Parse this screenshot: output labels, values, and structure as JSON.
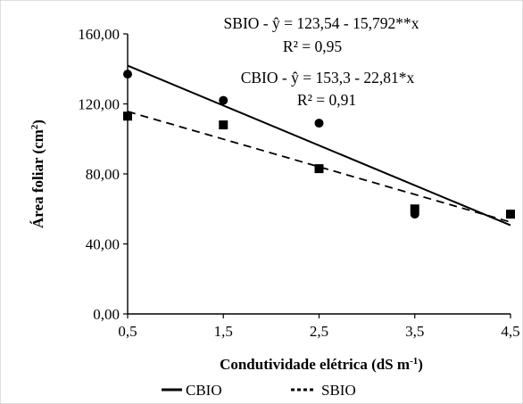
{
  "chart_data": {
    "type": "scatter",
    "xlabel": "Condutividade elétrica (dS m",
    "xlabel_sup": "-1",
    "xlabel_close": ")",
    "ylabel": "Área foliar (cm",
    "ylabel_sup": "2",
    "ylabel_close": ")",
    "x_ticks": [
      "0,5",
      "1,5",
      "2,5",
      "3,5",
      "4,5"
    ],
    "x_tick_values": [
      0.5,
      1.5,
      2.5,
      3.5,
      4.5
    ],
    "y_ticks": [
      "0,00",
      "40,00",
      "80,00",
      "120,00",
      "160,00"
    ],
    "y_tick_values": [
      0,
      40,
      80,
      120,
      160
    ],
    "xlim": [
      0.5,
      4.5
    ],
    "ylim": [
      0,
      160
    ],
    "grid": false,
    "legend_position": "bottom",
    "series": [
      {
        "name": "CBIO",
        "marker": "circle",
        "line_style": "solid",
        "x": [
          0.5,
          1.5,
          2.5,
          3.5,
          4.5
        ],
        "y": [
          137,
          122,
          109,
          57,
          57
        ],
        "equation": "CBIO - ŷ  = 153,3 - 22,81*x",
        "r2": "R² = 0,91",
        "trend": {
          "intercept": 153.3,
          "slope": -22.81
        }
      },
      {
        "name": "SBIO",
        "marker": "square",
        "line_style": "dashed",
        "x": [
          0.5,
          1.5,
          2.5,
          3.5,
          4.5
        ],
        "y": [
          113,
          108,
          83,
          60,
          57
        ],
        "equation": "SBIO - ŷ  = 123,54 - 15,792**x",
        "r2": "R² = 0,95",
        "trend": {
          "intercept": 123.54,
          "slope": -15.792
        }
      }
    ]
  }
}
